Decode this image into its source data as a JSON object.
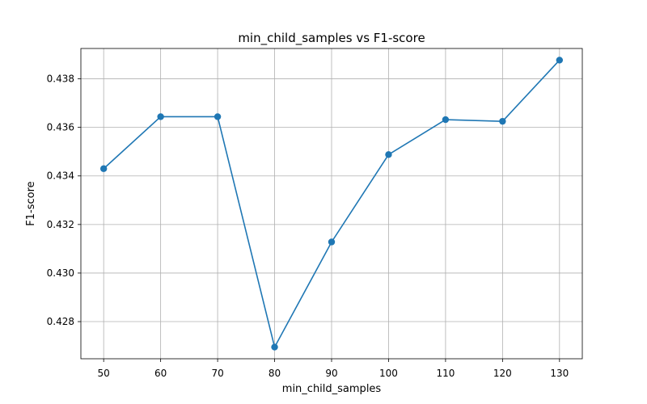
{
  "chart_data": {
    "type": "line",
    "title": "min_child_samples vs F1-score",
    "xlabel": "min_child_samples",
    "ylabel": "F1-score",
    "x": [
      50,
      60,
      70,
      80,
      90,
      100,
      110,
      120,
      130
    ],
    "series": [
      {
        "values": [
          0.4343,
          0.43644,
          0.43644,
          0.42695,
          0.43128,
          0.43488,
          0.43632,
          0.43625,
          0.43877
        ],
        "color": "#1f77b4",
        "marker": "circle"
      }
    ],
    "xticks": [
      50,
      60,
      70,
      80,
      90,
      100,
      110,
      120,
      130
    ],
    "xtick_labels": [
      "50",
      "60",
      "70",
      "80",
      "90",
      "100",
      "110",
      "120",
      "130"
    ],
    "yticks": [
      0.428,
      0.43,
      0.432,
      0.434,
      0.436,
      0.438
    ],
    "ytick_labels": [
      "0.428",
      "0.430",
      "0.432",
      "0.434",
      "0.436",
      "0.438"
    ],
    "xlim": [
      46.0,
      134.0
    ],
    "ylim": [
      0.42647,
      0.43925
    ],
    "grid": true,
    "legend": "none"
  }
}
